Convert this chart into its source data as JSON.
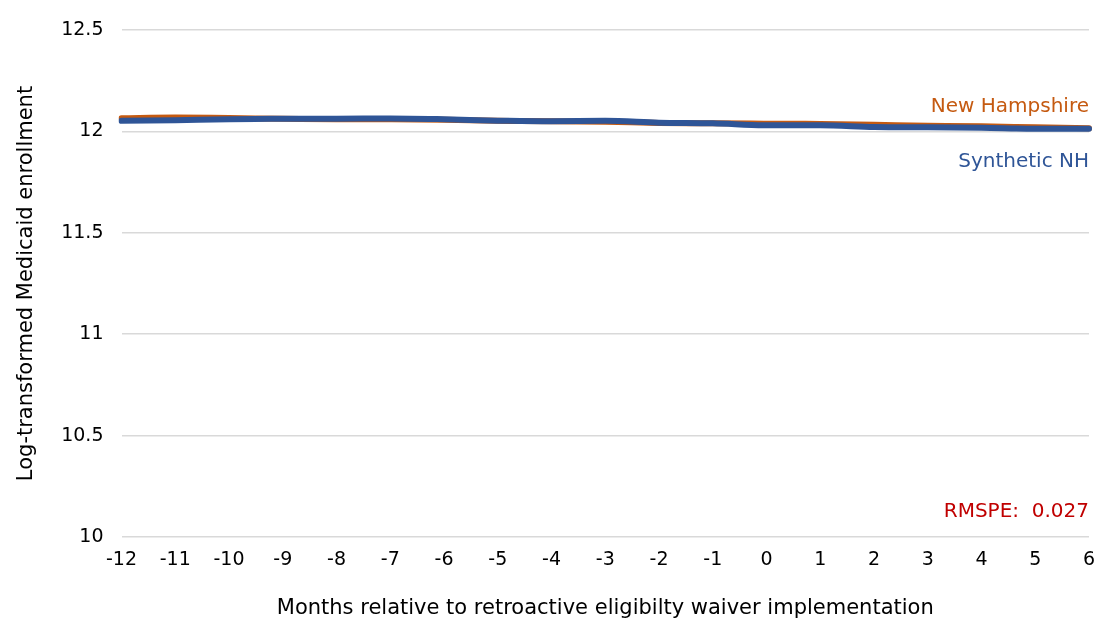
{
  "chart_data": {
    "type": "line",
    "xlabel": "Months relative to retroactive eligibilty waiver implementation",
    "ylabel": "Log-transformed Medicaid enrollment",
    "categories": [
      "-12",
      "-11",
      "-10",
      "-9",
      "-8",
      "-7",
      "-6",
      "-5",
      "-4",
      "-3",
      "-2",
      "-1",
      "0",
      "1",
      "2",
      "3",
      "4",
      "5",
      "6"
    ],
    "series": [
      {
        "name": "New Hampshire",
        "color": "#c55a11",
        "values": [
          12.065,
          12.068,
          12.066,
          12.062,
          12.06,
          12.06,
          12.058,
          12.052,
          12.05,
          12.048,
          12.042,
          12.04,
          12.038,
          12.037,
          12.033,
          12.028,
          12.025,
          12.02,
          12.015
        ]
      },
      {
        "name": "Synthetic NH",
        "color": "#2f5597",
        "values": [
          12.052,
          12.055,
          12.06,
          12.062,
          12.062,
          12.064,
          12.06,
          12.053,
          12.05,
          12.052,
          12.043,
          12.04,
          12.03,
          12.03,
          12.022,
          12.02,
          12.018,
          12.013,
          12.013
        ]
      }
    ],
    "ylim": [
      10,
      12.5
    ],
    "yticks": [
      10,
      10.5,
      11,
      11.5,
      12,
      12.5
    ],
    "grid": "y",
    "legend": false,
    "marker": "none",
    "line_style": "solid",
    "annotations": [
      "RMSPE:  0.027"
    ]
  }
}
